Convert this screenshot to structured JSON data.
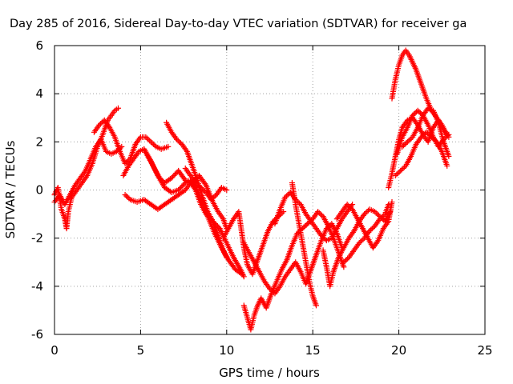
{
  "chart_data": {
    "type": "scatter",
    "title": "Day 285 of 2016, Sidereal Day-to-day VTEC variation (SDTVAR) for receiver ga",
    "xlabel": "GPS time / hours",
    "ylabel": "SDTVAR / TECUs",
    "xlim": [
      0,
      25
    ],
    "ylim": [
      -6,
      6
    ],
    "x_ticks": [
      "0",
      "5",
      "10",
      "15",
      "20",
      "25"
    ],
    "y_ticks": [
      "-6",
      "-4",
      "-2",
      "0",
      "2",
      "4",
      "6"
    ],
    "grid": true,
    "legend": "none",
    "marker": "plus",
    "color": "#ff0000",
    "series": [
      {
        "points": [
          [
            0.0,
            -0.2
          ],
          [
            0.2,
            0.1
          ],
          [
            0.4,
            -0.8
          ],
          [
            0.6,
            -1.2
          ],
          [
            0.7,
            -1.6
          ],
          [
            0.8,
            -0.9
          ],
          [
            1.0,
            -0.3
          ],
          [
            1.3,
            0.0
          ],
          [
            1.6,
            0.3
          ],
          [
            1.9,
            0.6
          ],
          [
            2.2,
            1.1
          ],
          [
            2.5,
            1.8
          ],
          [
            2.8,
            2.3
          ],
          [
            3.1,
            2.9
          ],
          [
            3.3,
            3.1
          ],
          [
            3.5,
            3.3
          ],
          [
            3.7,
            3.4
          ]
        ]
      },
      {
        "points": [
          [
            0.0,
            -0.5
          ],
          [
            0.3,
            -0.2
          ],
          [
            0.6,
            -0.6
          ],
          [
            0.9,
            -0.2
          ],
          [
            1.2,
            0.2
          ],
          [
            1.5,
            0.5
          ],
          [
            1.8,
            0.8
          ],
          [
            2.1,
            1.3
          ],
          [
            2.4,
            1.8
          ],
          [
            2.7,
            2.1
          ],
          [
            3.0,
            1.6
          ],
          [
            3.3,
            1.5
          ],
          [
            3.6,
            1.6
          ],
          [
            3.9,
            1.8
          ]
        ]
      },
      {
        "points": [
          [
            2.3,
            2.4
          ],
          [
            2.6,
            2.7
          ],
          [
            2.9,
            2.9
          ],
          [
            3.2,
            2.6
          ],
          [
            3.5,
            2.2
          ],
          [
            3.8,
            1.6
          ],
          [
            4.1,
            1.1
          ],
          [
            4.4,
            1.3
          ],
          [
            4.7,
            1.9
          ],
          [
            5.0,
            2.2
          ],
          [
            5.3,
            2.2
          ],
          [
            5.6,
            2.0
          ],
          [
            5.9,
            1.8
          ],
          [
            6.2,
            1.7
          ],
          [
            6.6,
            1.8
          ]
        ]
      },
      {
        "points": [
          [
            4.0,
            0.6
          ],
          [
            4.3,
            1.0
          ],
          [
            4.6,
            1.3
          ],
          [
            4.9,
            1.6
          ],
          [
            5.2,
            1.7
          ],
          [
            5.5,
            1.3
          ],
          [
            5.8,
            0.9
          ],
          [
            6.1,
            0.5
          ],
          [
            6.4,
            0.3
          ],
          [
            6.8,
            0.5
          ],
          [
            7.2,
            0.8
          ],
          [
            7.6,
            0.4
          ],
          [
            8.0,
            0.3
          ],
          [
            8.4,
            0.6
          ],
          [
            8.8,
            0.2
          ],
          [
            9.2,
            -0.5
          ],
          [
            9.5,
            -0.9
          ],
          [
            9.8,
            -1.2
          ],
          [
            10.0,
            -1.6
          ]
        ]
      },
      {
        "points": [
          [
            4.1,
            -0.2
          ],
          [
            4.4,
            -0.4
          ],
          [
            4.8,
            -0.5
          ],
          [
            5.2,
            -0.4
          ],
          [
            5.6,
            -0.6
          ],
          [
            6.0,
            -0.8
          ],
          [
            6.4,
            -0.6
          ],
          [
            6.8,
            -0.4
          ],
          [
            7.2,
            -0.2
          ],
          [
            7.6,
            0.0
          ],
          [
            7.9,
            0.3
          ],
          [
            8.2,
            0.0
          ],
          [
            8.5,
            -0.6
          ],
          [
            8.8,
            -1.0
          ],
          [
            9.2,
            -1.3
          ],
          [
            9.6,
            -1.6
          ],
          [
            10.0,
            -2.2
          ],
          [
            10.4,
            -2.8
          ],
          [
            10.8,
            -3.3
          ],
          [
            11.0,
            -3.6
          ]
        ]
      },
      {
        "points": [
          [
            5.2,
            1.7
          ],
          [
            5.6,
            1.2
          ],
          [
            6.0,
            0.6
          ],
          [
            6.4,
            0.1
          ],
          [
            6.8,
            -0.1
          ],
          [
            7.2,
            0.0
          ],
          [
            7.6,
            0.3
          ],
          [
            7.9,
            0.4
          ],
          [
            8.2,
            0.1
          ],
          [
            8.5,
            -0.4
          ],
          [
            8.9,
            -1.1
          ],
          [
            9.3,
            -1.8
          ],
          [
            9.7,
            -2.4
          ],
          [
            10.1,
            -2.9
          ],
          [
            10.5,
            -3.3
          ],
          [
            10.9,
            -3.5
          ]
        ]
      },
      {
        "points": [
          [
            6.5,
            2.8
          ],
          [
            6.8,
            2.4
          ],
          [
            7.1,
            2.1
          ],
          [
            7.4,
            1.9
          ],
          [
            7.7,
            1.6
          ],
          [
            8.0,
            1.0
          ],
          [
            8.3,
            0.4
          ],
          [
            8.6,
            -0.3
          ],
          [
            8.9,
            -0.9
          ],
          [
            9.2,
            -1.3
          ],
          [
            9.5,
            -1.9
          ],
          [
            9.8,
            -2.5
          ],
          [
            10.0,
            -2.8
          ]
        ]
      },
      {
        "points": [
          [
            7.6,
            0.9
          ],
          [
            7.9,
            0.6
          ],
          [
            8.2,
            0.3
          ],
          [
            8.5,
            0.1
          ],
          [
            8.8,
            -0.1
          ],
          [
            9.1,
            -0.4
          ],
          [
            9.4,
            -0.2
          ],
          [
            9.7,
            0.1
          ],
          [
            10.0,
            0.0
          ]
        ]
      },
      {
        "points": [
          [
            9.8,
            -2.0
          ],
          [
            10.1,
            -1.6
          ],
          [
            10.4,
            -1.2
          ],
          [
            10.7,
            -0.9
          ],
          [
            11.0,
            -2.4
          ],
          [
            11.2,
            -3.1
          ],
          [
            11.5,
            -3.5
          ],
          [
            11.8,
            -2.9
          ],
          [
            12.1,
            -2.3
          ],
          [
            12.4,
            -1.7
          ],
          [
            12.7,
            -1.3
          ],
          [
            13.0,
            -1.1
          ],
          [
            13.3,
            -0.9
          ]
        ]
      },
      {
        "points": [
          [
            11.0,
            -4.8
          ],
          [
            11.2,
            -5.3
          ],
          [
            11.4,
            -5.8
          ],
          [
            11.6,
            -5.2
          ],
          [
            11.8,
            -4.8
          ],
          [
            12.0,
            -4.5
          ],
          [
            12.3,
            -4.9
          ],
          [
            12.6,
            -4.3
          ],
          [
            12.9,
            -3.8
          ],
          [
            13.2,
            -3.3
          ],
          [
            13.5,
            -2.9
          ],
          [
            13.8,
            -2.3
          ],
          [
            14.1,
            -1.8
          ],
          [
            14.4,
            -1.6
          ],
          [
            14.7,
            -1.4
          ],
          [
            15.0,
            -1.2
          ],
          [
            15.3,
            -0.9
          ],
          [
            15.6,
            -1.1
          ],
          [
            15.9,
            -1.5
          ],
          [
            16.2,
            -2.0
          ],
          [
            16.5,
            -2.6
          ],
          [
            16.8,
            -3.2
          ]
        ]
      },
      {
        "points": [
          [
            11.0,
            -2.2
          ],
          [
            11.3,
            -2.6
          ],
          [
            11.6,
            -3.0
          ],
          [
            11.9,
            -3.4
          ],
          [
            12.2,
            -3.8
          ],
          [
            12.5,
            -4.1
          ],
          [
            12.8,
            -4.3
          ],
          [
            13.1,
            -4.0
          ],
          [
            13.4,
            -3.6
          ],
          [
            13.7,
            -3.3
          ],
          [
            14.0,
            -3.0
          ],
          [
            14.3,
            -3.4
          ],
          [
            14.6,
            -3.9
          ],
          [
            14.9,
            -3.3
          ],
          [
            15.2,
            -2.7
          ],
          [
            15.5,
            -2.1
          ],
          [
            15.8,
            -1.6
          ],
          [
            16.1,
            -1.4
          ],
          [
            16.4,
            -1.8
          ],
          [
            16.7,
            -2.4
          ]
        ]
      },
      {
        "points": [
          [
            12.8,
            -1.4
          ],
          [
            13.1,
            -0.8
          ],
          [
            13.4,
            -0.3
          ],
          [
            13.7,
            -0.1
          ],
          [
            14.0,
            -0.4
          ],
          [
            14.3,
            -0.6
          ],
          [
            14.6,
            -1.0
          ],
          [
            14.9,
            -1.3
          ],
          [
            15.2,
            -1.6
          ],
          [
            15.5,
            -1.9
          ],
          [
            15.8,
            -2.1
          ],
          [
            16.1,
            -2.0
          ],
          [
            16.4,
            -1.6
          ],
          [
            16.7,
            -1.2
          ],
          [
            17.0,
            -0.9
          ],
          [
            17.3,
            -0.6
          ]
        ]
      },
      {
        "points": [
          [
            13.8,
            0.3
          ],
          [
            14.0,
            -0.6
          ],
          [
            14.2,
            -1.4
          ],
          [
            14.4,
            -2.2
          ],
          [
            14.6,
            -3.0
          ],
          [
            14.8,
            -3.8
          ],
          [
            15.0,
            -4.4
          ],
          [
            15.2,
            -4.8
          ]
        ]
      },
      {
        "points": [
          [
            15.6,
            -2.5
          ],
          [
            15.8,
            -3.2
          ],
          [
            16.0,
            -4.0
          ],
          [
            16.2,
            -3.4
          ],
          [
            16.5,
            -2.8
          ],
          [
            16.8,
            -2.4
          ],
          [
            17.1,
            -2.0
          ],
          [
            17.4,
            -1.7
          ],
          [
            17.7,
            -1.3
          ],
          [
            18.0,
            -1.0
          ],
          [
            18.3,
            -0.8
          ],
          [
            18.6,
            -0.9
          ],
          [
            18.9,
            -1.1
          ],
          [
            19.2,
            -1.3
          ],
          [
            19.5,
            -0.9
          ]
        ]
      },
      {
        "points": [
          [
            16.8,
            -3.0
          ],
          [
            17.1,
            -2.8
          ],
          [
            17.4,
            -2.5
          ],
          [
            17.7,
            -2.2
          ],
          [
            18.0,
            -2.0
          ],
          [
            18.3,
            -1.7
          ],
          [
            18.6,
            -1.5
          ],
          [
            18.9,
            -1.2
          ],
          [
            19.2,
            -1.0
          ],
          [
            19.4,
            -0.6
          ]
        ]
      },
      {
        "points": [
          [
            16.4,
            -1.2
          ],
          [
            16.7,
            -0.9
          ],
          [
            17.0,
            -0.6
          ],
          [
            17.3,
            -0.8
          ],
          [
            17.6,
            -1.2
          ],
          [
            17.9,
            -1.6
          ],
          [
            18.2,
            -2.0
          ],
          [
            18.5,
            -2.4
          ],
          [
            18.8,
            -2.1
          ],
          [
            19.1,
            -1.6
          ],
          [
            19.4,
            -1.3
          ],
          [
            19.6,
            -0.5
          ]
        ]
      },
      {
        "points": [
          [
            19.4,
            0.1
          ],
          [
            19.6,
            0.7
          ],
          [
            19.8,
            1.4
          ],
          [
            20.0,
            2.1
          ],
          [
            20.2,
            2.6
          ],
          [
            20.5,
            2.9
          ],
          [
            20.8,
            3.0
          ],
          [
            21.1,
            2.7
          ],
          [
            21.4,
            2.3
          ],
          [
            21.7,
            2.0
          ],
          [
            22.0,
            2.6
          ],
          [
            22.3,
            2.9
          ],
          [
            22.6,
            2.5
          ],
          [
            22.9,
            2.2
          ]
        ]
      },
      {
        "points": [
          [
            19.8,
            0.6
          ],
          [
            20.1,
            0.8
          ],
          [
            20.4,
            1.0
          ],
          [
            20.7,
            1.4
          ],
          [
            21.0,
            1.9
          ],
          [
            21.3,
            2.2
          ],
          [
            21.6,
            2.4
          ],
          [
            21.9,
            2.2
          ],
          [
            22.2,
            2.0
          ],
          [
            22.5,
            1.6
          ],
          [
            22.8,
            1.0
          ]
        ]
      },
      {
        "points": [
          [
            19.6,
            3.8
          ],
          [
            19.8,
            4.6
          ],
          [
            20.0,
            5.2
          ],
          [
            20.2,
            5.6
          ],
          [
            20.4,
            5.8
          ],
          [
            20.6,
            5.6
          ],
          [
            20.8,
            5.3
          ],
          [
            21.0,
            5.0
          ],
          [
            21.3,
            4.4
          ],
          [
            21.6,
            3.8
          ],
          [
            21.9,
            3.3
          ],
          [
            22.2,
            3.0
          ],
          [
            22.5,
            2.7
          ],
          [
            22.8,
            2.3
          ]
        ]
      },
      {
        "points": [
          [
            19.9,
            1.5
          ],
          [
            20.2,
            2.2
          ],
          [
            20.5,
            2.6
          ],
          [
            20.8,
            3.1
          ],
          [
            21.1,
            3.3
          ],
          [
            21.4,
            3.1
          ],
          [
            21.7,
            2.7
          ],
          [
            22.0,
            2.2
          ],
          [
            22.3,
            1.8
          ],
          [
            22.6,
            2.1
          ],
          [
            22.9,
            2.3
          ]
        ]
      },
      {
        "points": [
          [
            20.2,
            1.8
          ],
          [
            20.5,
            2.0
          ],
          [
            20.8,
            2.2
          ],
          [
            21.1,
            2.6
          ],
          [
            21.4,
            3.1
          ],
          [
            21.7,
            3.4
          ],
          [
            22.0,
            3.3
          ],
          [
            22.3,
            2.8
          ],
          [
            22.6,
            2.0
          ],
          [
            22.9,
            1.4
          ]
        ]
      }
    ]
  }
}
